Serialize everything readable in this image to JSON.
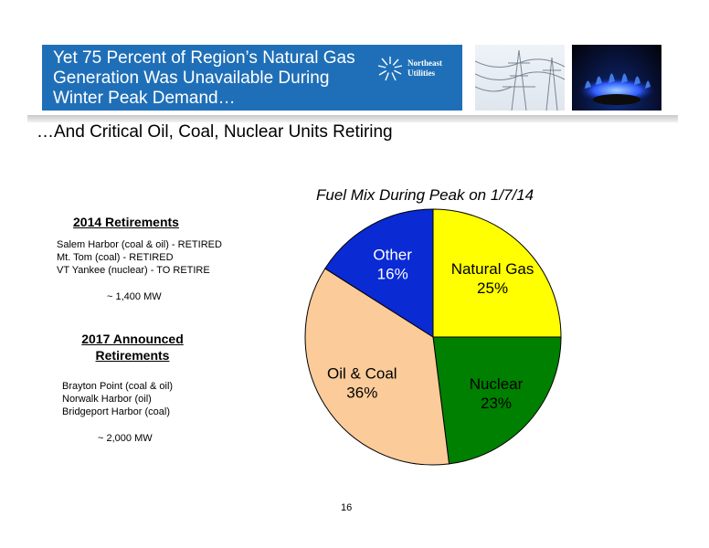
{
  "header": {
    "title_lines": [
      "Yet 75 Percent of Region’s Natural Gas",
      "Generation Was Unavailable During",
      "Winter Peak Demand…"
    ],
    "logo_lines": [
      "Northeast",
      "Utilities"
    ],
    "subtitle": "…And Critical Oil, Coal, Nuclear Units Retiring"
  },
  "retirements_2014": {
    "heading": "2014 Retirements",
    "items": [
      "Salem Harbor (coal & oil) - RETIRED",
      "Mt. Tom (coal) - RETIRED",
      "VT Yankee (nuclear) - TO RETIRE"
    ],
    "total": "~ 1,400 MW"
  },
  "retirements_2017": {
    "heading_lines": [
      "2017 Announced",
      "Retirements"
    ],
    "items": [
      "Brayton Point (coal & oil)",
      "Norwalk Harbor (oil)",
      "Bridgeport Harbor (coal)"
    ],
    "total": "~ 2,000 MW"
  },
  "chart_data": {
    "type": "pie",
    "title": "Fuel Mix During Peak on 1/7/14",
    "slices": [
      {
        "label": "Natural Gas",
        "value": 25,
        "display": "25%",
        "color": "#ffff00"
      },
      {
        "label": "Nuclear",
        "value": 23,
        "display": "23%",
        "color": "#008000"
      },
      {
        "label": "Oil & Coal",
        "value": 36,
        "display": "36%",
        "color": "#fbcb9a"
      },
      {
        "label": "Other",
        "value": 16,
        "display": "16%",
        "color": "#0a2ad4"
      }
    ]
  },
  "page_number": "16"
}
